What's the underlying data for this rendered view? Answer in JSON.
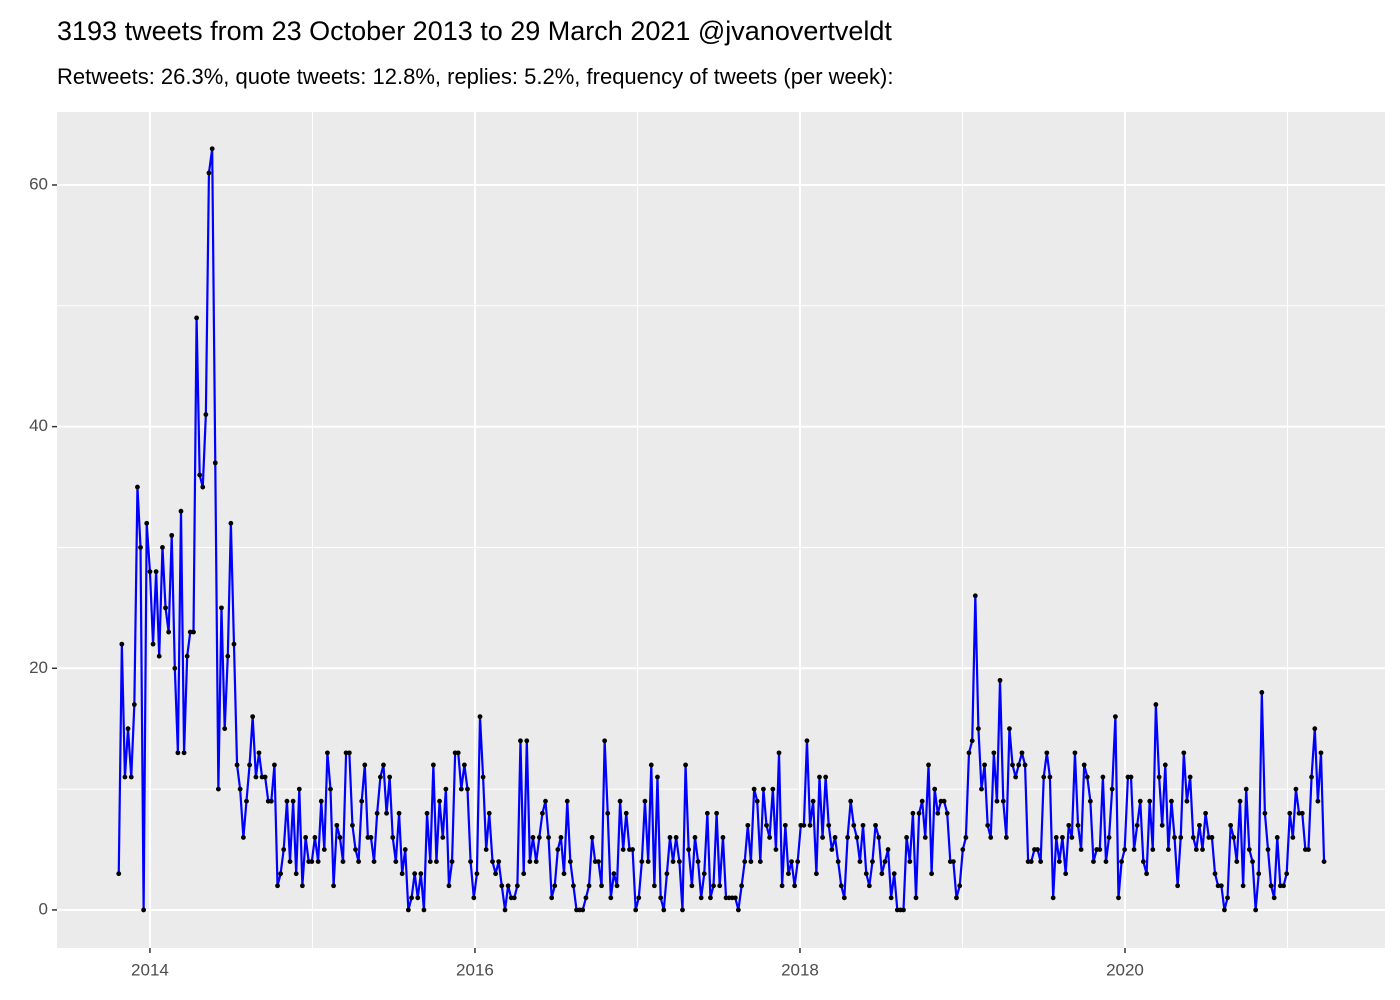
{
  "chart_data": {
    "type": "line",
    "title": "3193 tweets from 23 October 2013 to 29 March 2021 @jvanovertveldt",
    "subtitle": "Retweets: 26.3%, quote tweets: 12.8%, replies: 5.2%, frequency of tweets (per week):",
    "color": "#0000ff",
    "point_color": "#000000",
    "grid": true,
    "xlim": [
      2013.428,
      2021.6
    ],
    "xticks": [
      2014,
      2016,
      2018,
      2020
    ],
    "ylim": [
      -3.15,
      66.04
    ],
    "yticks": [
      0,
      20,
      40,
      60
    ],
    "x": [
      2013.808,
      2013.827,
      2013.846,
      2013.865,
      2013.885,
      2013.904,
      2013.923,
      2013.942,
      2013.961,
      2013.98,
      2014.0,
      2014.019,
      2014.038,
      2014.057,
      2014.077,
      2014.096,
      2014.115,
      2014.134,
      2014.153,
      2014.172,
      2014.191,
      2014.21,
      2014.229,
      2014.248,
      2014.268,
      2014.287,
      2014.306,
      2014.325,
      2014.344,
      2014.363,
      2014.383,
      2014.402,
      2014.421,
      2014.44,
      2014.46,
      2014.479,
      2014.498,
      2014.517,
      2014.536,
      2014.555,
      2014.575,
      2014.594,
      2014.613,
      2014.632,
      2014.652,
      2014.671,
      2014.69,
      2014.709,
      2014.728,
      2014.747,
      2014.766,
      2014.785,
      2014.804,
      2014.823,
      2014.843,
      2014.862,
      2014.881,
      2014.9,
      2014.919,
      2014.938,
      2014.958,
      2014.977,
      2014.996,
      2015.015,
      2015.035,
      2015.054,
      2015.073,
      2015.092,
      2015.111,
      2015.13,
      2015.15,
      2015.169,
      2015.188,
      2015.207,
      2015.227,
      2015.246,
      2015.265,
      2015.284,
      2015.303,
      2015.322,
      2015.341,
      2015.36,
      2015.379,
      2015.398,
      2015.418,
      2015.437,
      2015.456,
      2015.475,
      2015.494,
      2015.513,
      2015.533,
      2015.552,
      2015.571,
      2015.59,
      2015.61,
      2015.629,
      2015.648,
      2015.667,
      2015.686,
      2015.705,
      2015.725,
      2015.744,
      2015.763,
      2015.782,
      2015.802,
      2015.821,
      2015.84,
      2015.859,
      2015.878,
      2015.897,
      2015.916,
      2015.935,
      2015.954,
      2015.973,
      2015.993,
      2016.012,
      2016.031,
      2016.05,
      2016.069,
      2016.088,
      2016.108,
      2016.127,
      2016.146,
      2016.165,
      2016.185,
      2016.204,
      2016.223,
      2016.242,
      2016.261,
      2016.28,
      2016.3,
      2016.319,
      2016.338,
      2016.357,
      2016.377,
      2016.396,
      2016.415,
      2016.434,
      2016.453,
      2016.472,
      2016.491,
      2016.51,
      2016.529,
      2016.548,
      2016.568,
      2016.587,
      2016.606,
      2016.625,
      2016.644,
      2016.663,
      2016.683,
      2016.702,
      2016.721,
      2016.74,
      2016.76,
      2016.779,
      2016.798,
      2016.817,
      2016.836,
      2016.855,
      2016.874,
      2016.893,
      2016.912,
      2016.931,
      2016.951,
      2016.97,
      2016.989,
      2017.008,
      2017.027,
      2017.046,
      2017.066,
      2017.085,
      2017.104,
      2017.123,
      2017.143,
      2017.162,
      2017.181,
      2017.2,
      2017.219,
      2017.238,
      2017.258,
      2017.277,
      2017.296,
      2017.315,
      2017.335,
      2017.354,
      2017.373,
      2017.392,
      2017.411,
      2017.43,
      2017.449,
      2017.468,
      2017.487,
      2017.506,
      2017.526,
      2017.545,
      2017.564,
      2017.583,
      2017.602,
      2017.621,
      2017.641,
      2017.66,
      2017.679,
      2017.698,
      2017.718,
      2017.737,
      2017.756,
      2017.775,
      2017.794,
      2017.813,
      2017.833,
      2017.852,
      2017.871,
      2017.89,
      2017.91,
      2017.929,
      2017.948,
      2017.967,
      2017.986,
      2018.005,
      2018.024,
      2018.043,
      2018.062,
      2018.081,
      2018.101,
      2018.12,
      2018.139,
      2018.158,
      2018.177,
      2018.196,
      2018.216,
      2018.235,
      2018.254,
      2018.273,
      2018.293,
      2018.312,
      2018.331,
      2018.35,
      2018.369,
      2018.388,
      2018.408,
      2018.427,
      2018.446,
      2018.465,
      2018.485,
      2018.504,
      2018.523,
      2018.542,
      2018.561,
      2018.58,
      2018.599,
      2018.618,
      2018.637,
      2018.656,
      2018.676,
      2018.695,
      2018.714,
      2018.733,
      2018.752,
      2018.771,
      2018.791,
      2018.81,
      2018.829,
      2018.848,
      2018.868,
      2018.887,
      2018.906,
      2018.925,
      2018.944,
      2018.963,
      2018.983,
      2019.002,
      2019.021,
      2019.04,
      2019.06,
      2019.079,
      2019.098,
      2019.117,
      2019.136,
      2019.155,
      2019.174,
      2019.193,
      2019.212,
      2019.231,
      2019.251,
      2019.27,
      2019.289,
      2019.308,
      2019.327,
      2019.346,
      2019.366,
      2019.385,
      2019.404,
      2019.423,
      2019.443,
      2019.462,
      2019.481,
      2019.5,
      2019.519,
      2019.538,
      2019.558,
      2019.577,
      2019.596,
      2019.615,
      2019.635,
      2019.654,
      2019.673,
      2019.692,
      2019.711,
      2019.73,
      2019.749,
      2019.768,
      2019.787,
      2019.806,
      2019.826,
      2019.845,
      2019.864,
      2019.883,
      2019.902,
      2019.921,
      2019.941,
      2019.96,
      2019.979,
      2019.998,
      2020.018,
      2020.037,
      2020.056,
      2020.075,
      2020.094,
      2020.113,
      2020.133,
      2020.152,
      2020.171,
      2020.19,
      2020.21,
      2020.229,
      2020.248,
      2020.267,
      2020.286,
      2020.305,
      2020.324,
      2020.343,
      2020.362,
      2020.381,
      2020.401,
      2020.42,
      2020.439,
      2020.458,
      2020.477,
      2020.496,
      2020.516,
      2020.535,
      2020.554,
      2020.573,
      2020.593,
      2020.612,
      2020.631,
      2020.65,
      2020.669,
      2020.688,
      2020.708,
      2020.727,
      2020.746,
      2020.765,
      2020.785,
      2020.804,
      2020.823,
      2020.842,
      2020.861,
      2020.88,
      2020.899,
      2020.918,
      2020.937,
      2020.956,
      2020.976,
      2020.995,
      2021.014,
      2021.033,
      2021.052,
      2021.071,
      2021.091,
      2021.11,
      2021.129,
      2021.148,
      2021.168,
      2021.187,
      2021.206,
      2021.225
    ],
    "values": [
      3,
      22,
      11,
      15,
      11,
      17,
      35,
      30,
      0,
      32,
      28,
      22,
      28,
      21,
      30,
      25,
      23,
      31,
      20,
      13,
      33,
      13,
      21,
      23,
      23,
      49,
      36,
      35,
      41,
      61,
      63,
      37,
      10,
      25,
      15,
      21,
      32,
      22,
      12,
      10,
      6,
      9,
      12,
      16,
      11,
      13,
      11,
      11,
      9,
      9,
      12,
      2,
      3,
      5,
      9,
      4,
      9,
      3,
      10,
      2,
      6,
      4,
      4,
      6,
      4,
      9,
      5,
      13,
      10,
      2,
      7,
      6,
      4,
      13,
      13,
      7,
      5,
      4,
      9,
      12,
      6,
      6,
      4,
      8,
      11,
      12,
      8,
      11,
      6,
      4,
      8,
      3,
      5,
      0,
      1,
      3,
      1,
      3,
      0,
      8,
      4,
      12,
      4,
      9,
      6,
      10,
      2,
      4,
      13,
      13,
      10,
      12,
      10,
      4,
      1,
      3,
      16,
      11,
      5,
      8,
      4,
      3,
      4,
      2,
      0,
      2,
      1,
      1,
      2,
      14,
      3,
      14,
      4,
      6,
      4,
      6,
      8,
      9,
      6,
      1,
      2,
      5,
      6,
      3,
      9,
      4,
      2,
      0,
      0,
      0,
      1,
      2,
      6,
      4,
      4,
      2,
      14,
      8,
      1,
      3,
      2,
      9,
      5,
      8,
      5,
      5,
      0,
      1,
      4,
      9,
      4,
      12,
      2,
      11,
      1,
      0,
      3,
      6,
      4,
      6,
      4,
      0,
      12,
      5,
      2,
      6,
      4,
      1,
      3,
      8,
      1,
      2,
      8,
      2,
      6,
      1,
      1,
      1,
      1,
      0,
      2,
      4,
      7,
      4,
      10,
      9,
      4,
      10,
      7,
      6,
      10,
      5,
      13,
      2,
      7,
      3,
      4,
      2,
      4,
      7,
      7,
      14,
      7,
      9,
      3,
      11,
      6,
      11,
      7,
      5,
      6,
      4,
      2,
      1,
      6,
      9,
      7,
      6,
      4,
      7,
      3,
      2,
      4,
      7,
      6,
      3,
      4,
      5,
      1,
      3,
      0,
      0,
      0,
      6,
      4,
      8,
      1,
      8,
      9,
      6,
      12,
      3,
      10,
      8,
      9,
      9,
      8,
      4,
      4,
      1,
      2,
      5,
      6,
      13,
      14,
      26,
      15,
      10,
      12,
      7,
      6,
      13,
      9,
      19,
      9,
      6,
      15,
      12,
      11,
      12,
      13,
      12,
      4,
      4,
      5,
      5,
      4,
      11,
      13,
      11,
      1,
      6,
      4,
      6,
      3,
      7,
      6,
      13,
      7,
      5,
      12,
      11,
      9,
      4,
      5,
      5,
      11,
      4,
      6,
      10,
      16,
      1,
      4,
      5,
      11,
      11,
      5,
      7,
      9,
      4,
      3,
      9,
      5,
      17,
      11,
      7,
      12,
      5,
      9,
      6,
      2,
      6,
      13,
      9,
      11,
      6,
      5,
      7,
      5,
      8,
      6,
      6,
      3,
      2,
      2,
      0,
      1,
      7,
      6,
      4,
      9,
      2,
      10,
      5,
      4,
      0,
      3,
      18,
      8,
      5,
      2,
      1,
      6,
      2,
      2,
      3,
      8,
      6,
      10,
      8,
      8,
      5,
      5,
      11,
      15,
      9,
      13,
      4
    ]
  }
}
